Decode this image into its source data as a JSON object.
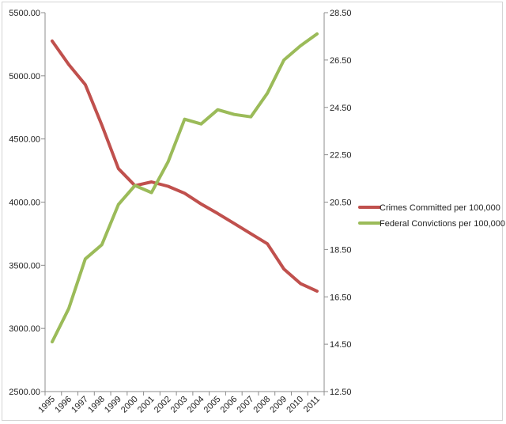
{
  "chart_data": {
    "type": "line",
    "title": "",
    "xlabel": "",
    "ylabel": "",
    "x": [
      "1995",
      "1996",
      "1997",
      "1998",
      "1999",
      "2000",
      "2001",
      "2002",
      "2003",
      "2004",
      "2005",
      "2006",
      "2007",
      "2008",
      "2009",
      "2010",
      "2011"
    ],
    "y_left_range": [
      2500,
      5500
    ],
    "y_left_ticks": [
      "2500.00",
      "3000.00",
      "3500.00",
      "4000.00",
      "4500.00",
      "5000.00",
      "5500.00"
    ],
    "y_right_range": [
      12.5,
      28.5
    ],
    "y_right_ticks": [
      "12.50",
      "14.50",
      "16.50",
      "18.50",
      "20.50",
      "22.50",
      "24.50",
      "26.50",
      "28.50"
    ],
    "grid": false,
    "legend_position": "right",
    "series": [
      {
        "name": "Crimes Committed per 100,000",
        "axis": "left",
        "color": "#c0504d",
        "values": [
          5275,
          5090,
          4930,
          4610,
          4265,
          4130,
          4160,
          4125,
          4070,
          3985,
          3910,
          3830,
          3750,
          3670,
          3470,
          3355,
          3295
        ]
      },
      {
        "name": "Federal Convictions per 100,000",
        "axis": "right",
        "color": "#9bbb59",
        "values": [
          14.6,
          16.0,
          18.1,
          18.7,
          20.4,
          21.2,
          20.9,
          22.2,
          24.0,
          23.8,
          24.4,
          24.2,
          24.1,
          25.1,
          26.5,
          27.1,
          27.6
        ]
      }
    ]
  }
}
